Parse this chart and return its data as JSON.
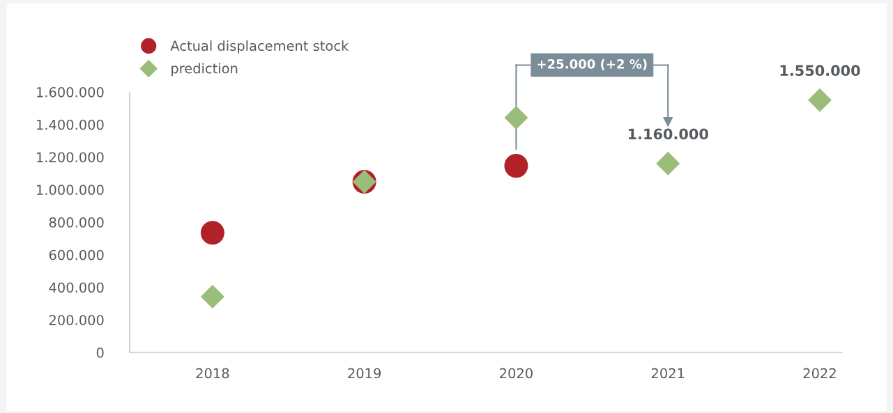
{
  "chart_data": {
    "type": "scatter",
    "categories": [
      "2018",
      "2019",
      "2020",
      "2021",
      "2022"
    ],
    "series": [
      {
        "name": "Actual displacement stock",
        "color": "#b22028",
        "marker": "circle",
        "values": [
          735000,
          1048000,
          1146000,
          null,
          null
        ]
      },
      {
        "name": "prediction",
        "color": "#9bbd7a",
        "marker": "diamond",
        "values": [
          342000,
          1048000,
          1442000,
          1160000,
          1550000
        ],
        "value_labels": [
          null,
          null,
          null,
          "1.160.000",
          "1.550.000"
        ]
      }
    ],
    "ylim": [
      0,
      1600000
    ],
    "yticks": [
      {
        "value": 0,
        "label": "0"
      },
      {
        "value": 200000,
        "label": "200.000"
      },
      {
        "value": 400000,
        "label": "400.000"
      },
      {
        "value": 600000,
        "label": "600.000"
      },
      {
        "value": 800000,
        "label": "800.000"
      },
      {
        "value": 1000000,
        "label": "1.000.000"
      },
      {
        "value": 1200000,
        "label": "1.200.000"
      },
      {
        "value": 1400000,
        "label": "1.400.000"
      },
      {
        "value": 1600000,
        "label": "1.600.000"
      }
    ],
    "annotations": [
      "+25.000 (+2 %)"
    ],
    "grid": false,
    "legend": "top left"
  }
}
